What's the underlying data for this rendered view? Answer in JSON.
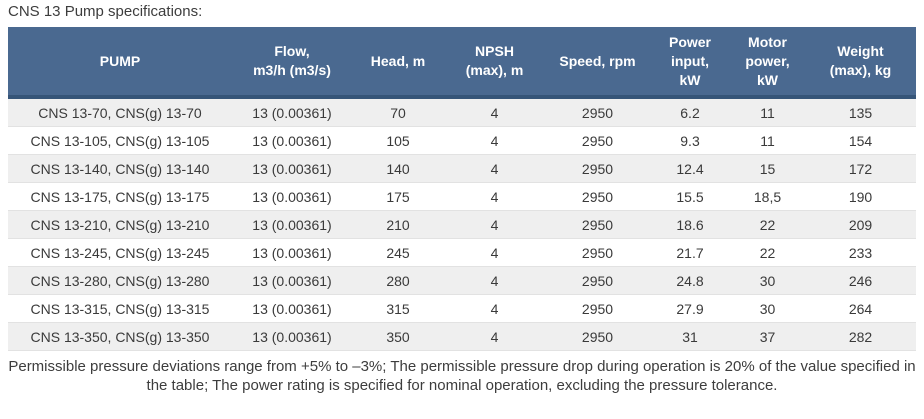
{
  "page_title": "CNS 13 Pump specifications:",
  "chart_data": {
    "type": "table",
    "title": "CNS 13 Pump specifications",
    "columns": [
      "PUMP",
      "Flow,\nm3/h (m3/s)",
      "Head, m",
      "NPSH\n(max), m",
      "Speed, rpm",
      "Power\ninput,\nkW",
      "Motor\npower,\nkW",
      "Weight\n(max), kg"
    ],
    "rows": [
      [
        "CNS 13-70, CNS(g) 13-70",
        "13 (0.00361)",
        "70",
        "4",
        "2950",
        "6.2",
        "11",
        "135"
      ],
      [
        "CNS 13-105, CNS(g) 13-105",
        "13 (0.00361)",
        "105",
        "4",
        "2950",
        "9.3",
        "11",
        "154"
      ],
      [
        "CNS 13-140, CNS(g) 13-140",
        "13 (0.00361)",
        "140",
        "4",
        "2950",
        "12.4",
        "15",
        "172"
      ],
      [
        "CNS 13-175, CNS(g) 13-175",
        "13 (0.00361)",
        "175",
        "4",
        "2950",
        "15.5",
        "18,5",
        "190"
      ],
      [
        "CNS 13-210, CNS(g) 13-210",
        "13 (0.00361)",
        "210",
        "4",
        "2950",
        "18.6",
        "22",
        "209"
      ],
      [
        "CNS 13-245, CNS(g) 13-245",
        "13 (0.00361)",
        "245",
        "4",
        "2950",
        "21.7",
        "22",
        "233"
      ],
      [
        "CNS 13-280, CNS(g) 13-280",
        "13 (0.00361)",
        "280",
        "4",
        "2950",
        "24.8",
        "30",
        "246"
      ],
      [
        "CNS 13-315, CNS(g) 13-315",
        "13 (0.00361)",
        "315",
        "4",
        "2950",
        "27.9",
        "30",
        "264"
      ],
      [
        "CNS 13-350, CNS(g) 13-350",
        "13 (0.00361)",
        "350",
        "4",
        "2950",
        "31",
        "37",
        "282"
      ]
    ]
  },
  "footnote": "Permissible pressure deviations range from +5% to –3%; The permissible pressure drop during operation is 20% of the value specified in the table; The power rating is specified for nominal operation, excluding the pressure tolerance.",
  "colors": {
    "header_bg": "#4a6990",
    "header_border": "#365578",
    "stripe_bg": "#efefef",
    "row_border": "#e2e2e2",
    "header_text": "#ffffff",
    "body_text": "#3a3a3a"
  }
}
